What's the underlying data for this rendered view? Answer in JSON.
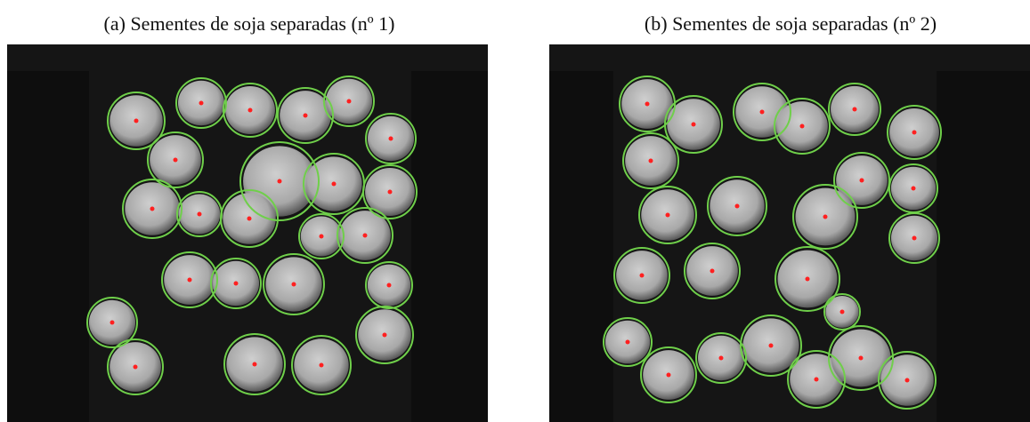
{
  "captions": {
    "left": "(a) Sementes de soja separadas (nº 1)",
    "right": "(b) Sementes de soja separadas (nº 2)"
  }
}
